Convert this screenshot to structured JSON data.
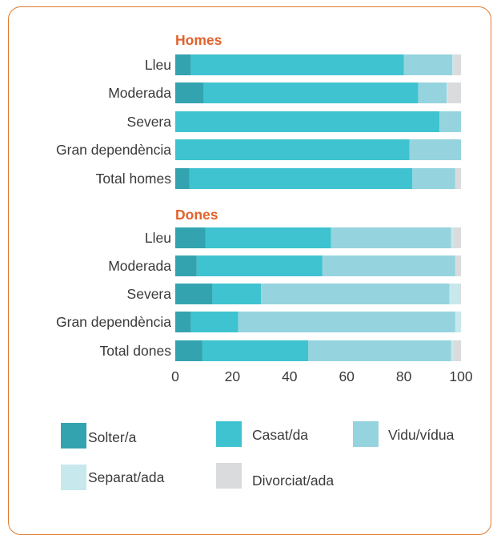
{
  "chart_data": {
    "type": "bar",
    "orientation": "horizontal",
    "stacked": true,
    "xlim": [
      0,
      100
    ],
    "x_ticks": [
      "0",
      "20",
      "40",
      "60",
      "80",
      "100"
    ],
    "legend_position": "bottom",
    "series": [
      {
        "name": "Solter/a",
        "color": "#34a3b0"
      },
      {
        "name": "Casat/da",
        "color": "#3fc3d0"
      },
      {
        "name": "Vidu/vídua",
        "color": "#95d4de"
      },
      {
        "name": "Separat/ada",
        "color": "#c7e8ec"
      },
      {
        "name": "Divorciat/ada",
        "color": "#d9dbdd"
      }
    ],
    "groups": [
      {
        "title": "Homes",
        "color": "#e2622b",
        "bars": [
          {
            "label": "Lleu",
            "values": [
              5.5,
              74.5,
              17,
              0.5,
              2.5
            ]
          },
          {
            "label": "Moderada",
            "values": [
              10,
              75,
              10,
              0.5,
              4.5
            ]
          },
          {
            "label": "Severa",
            "values": [
              0,
              92.5,
              7.5,
              0,
              0
            ]
          },
          {
            "label": "Gran dependència",
            "values": [
              0,
              82,
              18,
              0,
              0
            ]
          },
          {
            "label": "Total homes",
            "values": [
              5,
              78,
              15,
              0,
              2
            ]
          }
        ]
      },
      {
        "title": "Dones",
        "color": "#e2622b",
        "bars": [
          {
            "label": "Lleu",
            "values": [
              10.5,
              44,
              42,
              1,
              2.5
            ]
          },
          {
            "label": "Moderada",
            "values": [
              7.5,
              44,
              46.5,
              0,
              2
            ]
          },
          {
            "label": "Severa",
            "values": [
              13,
              17,
              66,
              3.5,
              0.5
            ]
          },
          {
            "label": "Gran dependència",
            "values": [
              5.5,
              16.5,
              76,
              2,
              0
            ]
          },
          {
            "label": "Total dones",
            "values": [
              9.5,
              37,
              50,
              1,
              2.5
            ]
          }
        ]
      }
    ]
  }
}
